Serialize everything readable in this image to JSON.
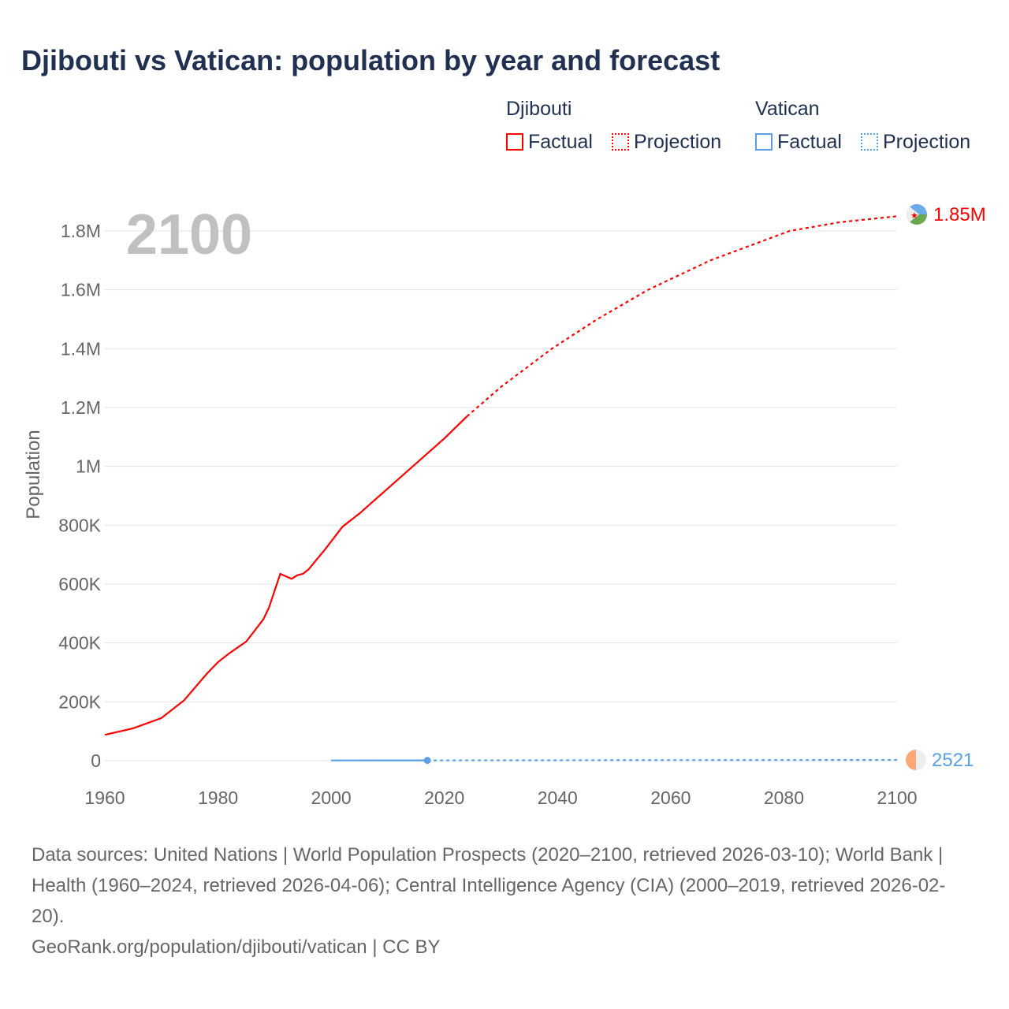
{
  "chart_data": {
    "type": "line",
    "title": "Djibouti vs Vatican: population by year and forecast",
    "ylabel": "Population",
    "xlabel": "",
    "xlim": [
      1960,
      2100
    ],
    "ylim": [
      0,
      1800000
    ],
    "x_ticks": [
      "1960",
      "1980",
      "2000",
      "2020",
      "2040",
      "2060",
      "2080",
      "2100"
    ],
    "y_ticks": [
      {
        "v": 0,
        "l": "0"
      },
      {
        "v": 200000,
        "l": "200K"
      },
      {
        "v": 400000,
        "l": "400K"
      },
      {
        "v": 600000,
        "l": "600K"
      },
      {
        "v": 800000,
        "l": "800K"
      },
      {
        "v": 1000000,
        "l": "1M"
      },
      {
        "v": 1200000,
        "l": "1.2M"
      },
      {
        "v": 1400000,
        "l": "1.4M"
      },
      {
        "v": 1600000,
        "l": "1.6M"
      },
      {
        "v": 1800000,
        "l": "1.8M"
      }
    ],
    "year_label": "2100",
    "series": [
      {
        "name": "Djibouti",
        "kind": "Factual",
        "color": "#ff0000",
        "points": [
          [
            1960,
            88000
          ],
          [
            1965,
            110000
          ],
          [
            1970,
            145000
          ],
          [
            1974,
            205000
          ],
          [
            1978,
            295000
          ],
          [
            1980,
            335000
          ],
          [
            1982,
            365000
          ],
          [
            1985,
            405000
          ],
          [
            1988,
            480000
          ],
          [
            1989,
            520000
          ],
          [
            1991,
            635000
          ],
          [
            1993,
            618000
          ],
          [
            1994,
            630000
          ],
          [
            1995,
            635000
          ],
          [
            1996,
            650000
          ],
          [
            1999,
            720000
          ],
          [
            2002,
            795000
          ],
          [
            2005,
            840000
          ],
          [
            2010,
            925000
          ],
          [
            2015,
            1010000
          ],
          [
            2020,
            1095000
          ],
          [
            2024,
            1170000
          ]
        ]
      },
      {
        "name": "Djibouti",
        "kind": "Projection",
        "color": "#ff0000",
        "points": [
          [
            2024,
            1170000
          ],
          [
            2030,
            1270000
          ],
          [
            2039,
            1400000
          ],
          [
            2047,
            1500000
          ],
          [
            2056,
            1600000
          ],
          [
            2067,
            1700000
          ],
          [
            2081,
            1800000
          ],
          [
            2090,
            1830000
          ],
          [
            2100,
            1850000
          ]
        ]
      },
      {
        "name": "Vatican",
        "kind": "Factual",
        "color": "#5aa0e6",
        "points": [
          [
            2000,
            800
          ],
          [
            2017,
            1000
          ]
        ]
      },
      {
        "name": "Vatican",
        "kind": "Projection",
        "color": "#5aa0e6",
        "points": [
          [
            2017,
            1000
          ],
          [
            2100,
            2521
          ]
        ]
      }
    ],
    "end_labels": {
      "djibouti": "1.85M",
      "vatican": "2521"
    }
  },
  "legend": {
    "djibouti": "Djibouti",
    "vatican": "Vatican",
    "factual": "Factual",
    "projection": "Projection"
  },
  "footer": {
    "sources": "Data sources: United Nations | World Population Prospects (2020–2100, retrieved 2026-03-10); World Bank | Health (1960–2024, retrieved 2026-04-06); Central Intelligence Agency (CIA) (2000–2019, retrieved 2026-02-20).",
    "link": "GeoRank.org/population/djibouti/vatican | CC BY"
  }
}
